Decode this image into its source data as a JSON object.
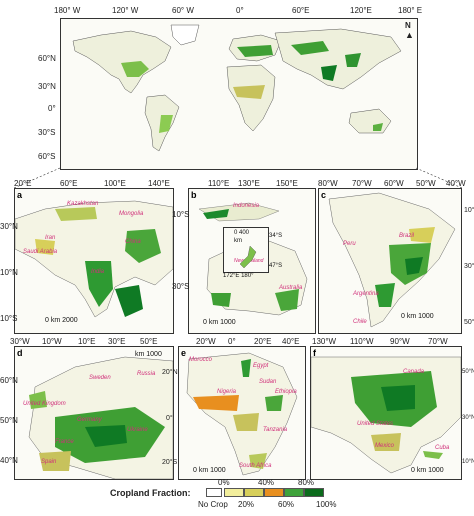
{
  "world_map": {
    "top_lon_ticks": [
      "180° W",
      "120° W",
      "60° W",
      "0°",
      "60°E",
      "120°E",
      "180° E"
    ],
    "lat_ticks": [
      "60°N",
      "30°N",
      "0°",
      "30°S",
      "60°S"
    ],
    "north_label": "N"
  },
  "panels": {
    "a": {
      "label": "a",
      "lon_ticks": [
        "20°E",
        "60°E",
        "100°E",
        "140°E"
      ],
      "lat_ticks": [
        "30°N",
        "10°N",
        "10°S"
      ],
      "places": [
        "Kazakhstan",
        "Mongolia",
        "Iran",
        "China",
        "Saudi Arabia",
        "India"
      ],
      "scale": "0   km  2000"
    },
    "b": {
      "label": "b",
      "lon_ticks": [
        "110°E",
        "130°E",
        "150°E"
      ],
      "lat_ticks": [
        "10°S",
        "30°S"
      ],
      "places": [
        "Indonesia",
        "New Zealand",
        "Australia"
      ],
      "inset_scale": "0   400",
      "inset_unit": "km",
      "inset_lat": "34°S",
      "inset_lat2": "47°S",
      "inset_lon": "172°E   180°",
      "scale": "0  km 1000"
    },
    "c": {
      "label": "c",
      "lon_ticks": [
        "80°W",
        "70°W",
        "60°W",
        "50°W",
        "40°W"
      ],
      "lat_ticks": [
        "10°S",
        "30°S",
        "50°S"
      ],
      "places": [
        "Brazil",
        "Peru",
        "Argentina",
        "Chile"
      ],
      "scale": "0   km 1000"
    },
    "d": {
      "label": "d",
      "lon_ticks": [
        "30°W",
        "10°W",
        "10°E",
        "30°E",
        "50°E"
      ],
      "lat_ticks": [
        "60°N",
        "50°N",
        "40°N"
      ],
      "places": [
        "United Kingdom",
        "Sweden",
        "Russia",
        "Germany",
        "Ukraine",
        "France",
        "Spain"
      ],
      "scale": "km  1000"
    },
    "e": {
      "label": "e",
      "lon_ticks": [
        "20°W",
        "0°",
        "20°E",
        "40°E"
      ],
      "lat_ticks": [
        "20°N",
        "0°",
        "20°S"
      ],
      "places": [
        "Morocco",
        "Egypt",
        "Sudan",
        "Nigeria",
        "Ethiopia",
        "Tanzania",
        "South Africa"
      ],
      "scale": "0   km 1000"
    },
    "f": {
      "label": "f",
      "lon_ticks": [
        "130°W",
        "110°W",
        "90°W",
        "70°W"
      ],
      "lat_ticks": [
        "50°N",
        "30°N",
        "10°N"
      ],
      "places": [
        "Canada",
        "United States",
        "Mexico",
        "Cuba"
      ],
      "scale": "0   km 1000"
    }
  },
  "legend": {
    "title": "Cropland Fraction:",
    "top_labels": [
      "0%",
      "40%",
      "80%"
    ],
    "bottom_labels": [
      "No Crop",
      "20%",
      "60%",
      "100%"
    ],
    "colors": [
      "#ffffff",
      "#f2ee9c",
      "#d7cf5a",
      "#e88f1f",
      "#3ea23a",
      "#0b6b1c"
    ]
  }
}
